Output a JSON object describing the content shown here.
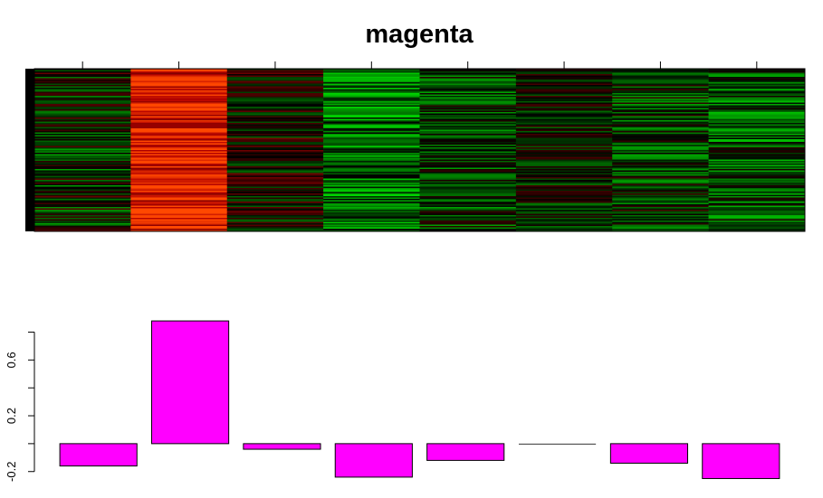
{
  "chart_data": [
    {
      "type": "heatmap",
      "title": "magenta",
      "columns": 8,
      "rows": 120,
      "column_profiles": [
        {
          "mean": -0.15,
          "spread": 0.55
        },
        {
          "mean": 0.85,
          "spread": 0.35
        },
        {
          "mean": 0.0,
          "spread": 0.45
        },
        {
          "mean": -0.45,
          "spread": 0.5
        },
        {
          "mean": -0.25,
          "spread": 0.45
        },
        {
          "mean": -0.1,
          "spread": 0.4
        },
        {
          "mean": -0.2,
          "spread": 0.5
        },
        {
          "mean": -0.35,
          "spread": 0.5
        }
      ],
      "colors": {
        "low": "#00ff00",
        "mid": "#000000",
        "high": "#ff0000"
      }
    },
    {
      "type": "bar",
      "values": [
        -0.16,
        0.88,
        -0.04,
        -0.24,
        -0.12,
        0.0,
        -0.14,
        -0.25
      ],
      "yticks": [
        -0.2,
        0.2,
        0.6
      ],
      "ytick_labels": [
        "-0.2",
        "0.2",
        "0.6"
      ],
      "ylim": [
        -0.26,
        0.9
      ],
      "bar_color": "#ff00ff"
    }
  ]
}
